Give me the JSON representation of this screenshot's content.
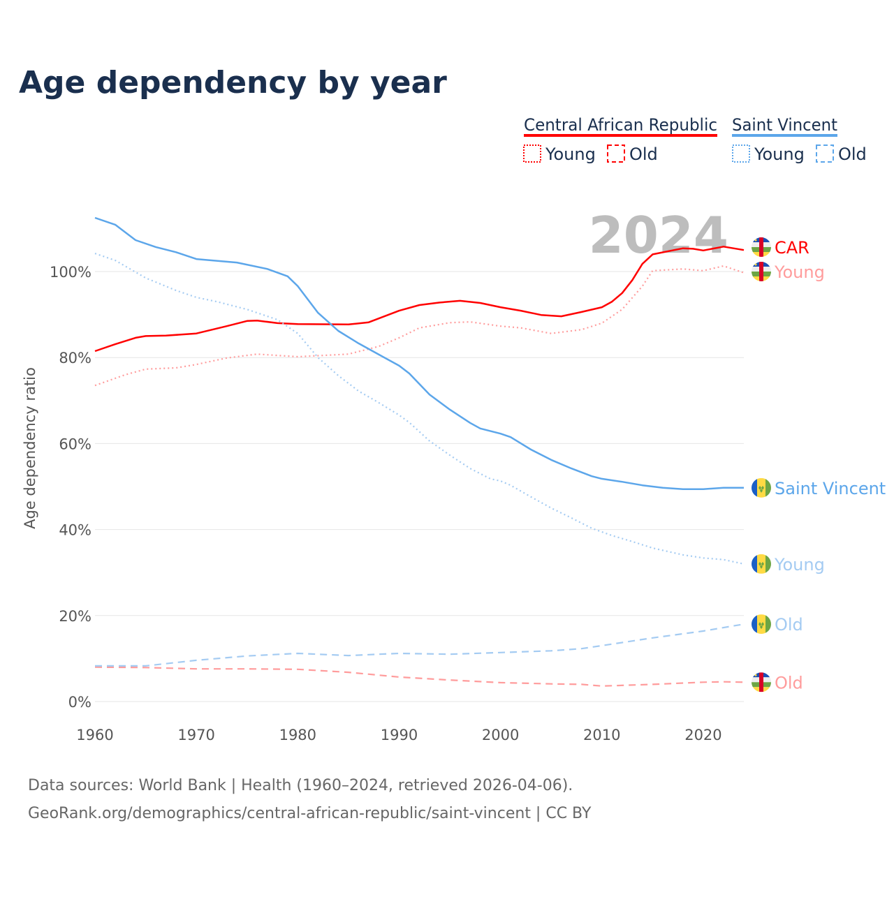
{
  "chart_data": {
    "type": "line",
    "title": "Age dependency by year",
    "ylabel": "Age dependency ratio",
    "xlabel": "",
    "xlim": [
      1960,
      2024
    ],
    "ylim": [
      0,
      113
    ],
    "x_ticks": [
      "1960",
      "1970",
      "1980",
      "1990",
      "2000",
      "2010",
      "2020"
    ],
    "x_tick_values": [
      1960,
      1970,
      1980,
      1990,
      2000,
      2010,
      2020
    ],
    "y_ticks": [
      "0%",
      "20%",
      "40%",
      "60%",
      "80%",
      "100%"
    ],
    "y_tick_values": [
      0,
      20,
      40,
      60,
      80,
      100
    ],
    "grid": true,
    "year_watermark": "2024",
    "legend": {
      "placement": "top-right",
      "groups": [
        {
          "name": "Central African Republic",
          "color": "#ff0000",
          "items": [
            "Young",
            "Old"
          ]
        },
        {
          "name": "Saint Vincent",
          "color": "#5ca6ea",
          "items": [
            "Young",
            "Old"
          ]
        }
      ]
    },
    "series": [
      {
        "name": "Central African Republic",
        "label": "CAR",
        "country": "car",
        "style": "solid",
        "color": "#ff0000",
        "label_color": "#ff0000",
        "points": [
          [
            1960,
            81.5
          ],
          [
            1962,
            83.1
          ],
          [
            1964,
            84.6
          ],
          [
            1965,
            85
          ],
          [
            1967,
            85.1
          ],
          [
            1970,
            85.6
          ],
          [
            1973,
            87.3
          ],
          [
            1975,
            88.5
          ],
          [
            1976,
            88.6
          ],
          [
            1978,
            88
          ],
          [
            1980,
            87.8
          ],
          [
            1985,
            87.7
          ],
          [
            1987,
            88.2
          ],
          [
            1990,
            90.9
          ],
          [
            1992,
            92.2
          ],
          [
            1994,
            92.8
          ],
          [
            1996,
            93.2
          ],
          [
            1998,
            92.7
          ],
          [
            2000,
            91.7
          ],
          [
            2002,
            90.9
          ],
          [
            2004,
            89.9
          ],
          [
            2006,
            89.6
          ],
          [
            2008,
            90.6
          ],
          [
            2010,
            91.7
          ],
          [
            2011,
            93
          ],
          [
            2012,
            95
          ],
          [
            2013,
            98
          ],
          [
            2014,
            101.8
          ],
          [
            2015,
            104
          ],
          [
            2018,
            105.4
          ],
          [
            2019,
            105.3
          ],
          [
            2020,
            104.9
          ],
          [
            2022,
            105.8
          ],
          [
            2024,
            105
          ]
        ]
      },
      {
        "name": "Central African Republic Young",
        "label": "Young",
        "country": "car",
        "style": "dotted",
        "color": "#ff9c9c",
        "label_color": "#ff9c9c",
        "points": [
          [
            1960,
            73.5
          ],
          [
            1963,
            76
          ],
          [
            1965,
            77.3
          ],
          [
            1968,
            77.6
          ],
          [
            1970,
            78.4
          ],
          [
            1973,
            79.9
          ],
          [
            1976,
            80.8
          ],
          [
            1980,
            80.2
          ],
          [
            1985,
            80.8
          ],
          [
            1988,
            82.6
          ],
          [
            1990,
            84.6
          ],
          [
            1992,
            86.9
          ],
          [
            1995,
            88.1
          ],
          [
            1997,
            88.3
          ],
          [
            2000,
            87.3
          ],
          [
            2002,
            86.9
          ],
          [
            2005,
            85.6
          ],
          [
            2008,
            86.5
          ],
          [
            2010,
            88
          ],
          [
            2012,
            91.2
          ],
          [
            2014,
            96.6
          ],
          [
            2015,
            100.2
          ],
          [
            2018,
            100.6
          ],
          [
            2020,
            100.2
          ],
          [
            2022,
            101.3
          ],
          [
            2024,
            99.7
          ]
        ]
      },
      {
        "name": "Central African Republic Old",
        "label": "Old",
        "country": "car",
        "style": "dashed",
        "color": "#ff9c9c",
        "label_color": "#ff9c9c",
        "points": [
          [
            1960,
            8
          ],
          [
            1965,
            7.9
          ],
          [
            1970,
            7.6
          ],
          [
            1975,
            7.6
          ],
          [
            1980,
            7.5
          ],
          [
            1985,
            6.8
          ],
          [
            1990,
            5.7
          ],
          [
            1995,
            5
          ],
          [
            2000,
            4.4
          ],
          [
            2005,
            4.1
          ],
          [
            2008,
            4
          ],
          [
            2010,
            3.6
          ],
          [
            2015,
            4
          ],
          [
            2020,
            4.5
          ],
          [
            2022,
            4.6
          ],
          [
            2024,
            4.5
          ]
        ]
      },
      {
        "name": "Saint Vincent",
        "label": "Saint Vincent",
        "country": "svg",
        "style": "solid",
        "color": "#5ca6ea",
        "label_color": "#5ca6ea",
        "points": [
          [
            1960,
            112.5
          ],
          [
            1962,
            110.9
          ],
          [
            1964,
            107.3
          ],
          [
            1966,
            105.7
          ],
          [
            1968,
            104.5
          ],
          [
            1970,
            102.9
          ],
          [
            1974,
            102.1
          ],
          [
            1977,
            100.6
          ],
          [
            1979,
            98.9
          ],
          [
            1980,
            96.6
          ],
          [
            1982,
            90.4
          ],
          [
            1984,
            86.2
          ],
          [
            1986,
            83.3
          ],
          [
            1988,
            80.7
          ],
          [
            1990,
            78.1
          ],
          [
            1991,
            76.3
          ],
          [
            1993,
            71.4
          ],
          [
            1995,
            67.9
          ],
          [
            1997,
            64.8
          ],
          [
            1998,
            63.5
          ],
          [
            2000,
            62.3
          ],
          [
            2001,
            61.5
          ],
          [
            2003,
            58.6
          ],
          [
            2005,
            56.2
          ],
          [
            2007,
            54.2
          ],
          [
            2009,
            52.4
          ],
          [
            2010,
            51.8
          ],
          [
            2012,
            51.1
          ],
          [
            2014,
            50.3
          ],
          [
            2016,
            49.7
          ],
          [
            2018,
            49.4
          ],
          [
            2020,
            49.4
          ],
          [
            2022,
            49.7
          ],
          [
            2024,
            49.7
          ]
        ]
      },
      {
        "name": "Saint Vincent Young",
        "label": "Young",
        "country": "svg",
        "style": "dotted",
        "color": "#a4cbf2",
        "label_color": "#a4cbf2",
        "points": [
          [
            1960,
            104.2
          ],
          [
            1962,
            102.6
          ],
          [
            1965,
            98.5
          ],
          [
            1968,
            95.6
          ],
          [
            1970,
            94
          ],
          [
            1972,
            93
          ],
          [
            1975,
            91.2
          ],
          [
            1978,
            88.8
          ],
          [
            1980,
            85.6
          ],
          [
            1982,
            80
          ],
          [
            1984,
            75.8
          ],
          [
            1986,
            72.2
          ],
          [
            1988,
            69.5
          ],
          [
            1990,
            66.6
          ],
          [
            1991,
            64.9
          ],
          [
            1993,
            60.6
          ],
          [
            1995,
            57.3
          ],
          [
            1997,
            54.2
          ],
          [
            1999,
            51.8
          ],
          [
            2000,
            51.3
          ],
          [
            2001,
            50.3
          ],
          [
            2003,
            47.6
          ],
          [
            2005,
            45
          ],
          [
            2007,
            42.7
          ],
          [
            2009,
            40.3
          ],
          [
            2011,
            38.6
          ],
          [
            2013,
            37.2
          ],
          [
            2015,
            35.7
          ],
          [
            2018,
            34.1
          ],
          [
            2020,
            33.4
          ],
          [
            2022,
            33
          ],
          [
            2024,
            32
          ]
        ]
      },
      {
        "name": "Saint Vincent Old",
        "label": "Old",
        "country": "svg",
        "style": "dashed",
        "color": "#a4cbf2",
        "label_color": "#a4cbf2",
        "points": [
          [
            1960,
            8.3
          ],
          [
            1965,
            8.3
          ],
          [
            1970,
            9.6
          ],
          [
            1975,
            10.6
          ],
          [
            1980,
            11.2
          ],
          [
            1985,
            10.7
          ],
          [
            1990,
            11.2
          ],
          [
            1995,
            11
          ],
          [
            2000,
            11.4
          ],
          [
            2005,
            11.8
          ],
          [
            2008,
            12.3
          ],
          [
            2010,
            13
          ],
          [
            2015,
            14.8
          ],
          [
            2020,
            16.4
          ],
          [
            2024,
            18
          ]
        ]
      }
    ]
  },
  "footer": {
    "line1": "Data sources: World Bank | Health (1960–2024, retrieved 2026-04-06).",
    "line2": "GeoRank.org/demographics/central-african-republic/saint-vincent | CC BY"
  }
}
